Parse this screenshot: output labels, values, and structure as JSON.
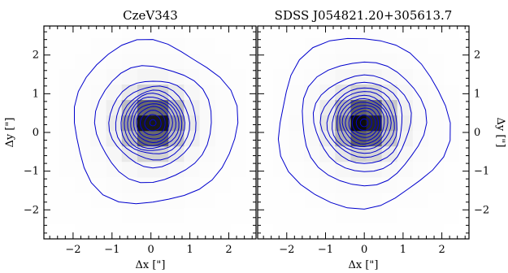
{
  "chart_data": [
    {
      "type": "heatmap",
      "title": "CzeV343",
      "xlabel": "Δx [\"]",
      "ylabel": "Δy [\"]",
      "xlim": [
        -2.75,
        2.7
      ],
      "ylim": [
        -2.75,
        2.75
      ],
      "x_ticks": [
        -2,
        -1,
        0,
        1,
        2
      ],
      "y_ticks": [
        -2,
        -1,
        0,
        1,
        2
      ],
      "x_tick_labels": [
        "−2",
        "−1",
        "0",
        "1",
        "2"
      ],
      "y_tick_labels": [
        "−2",
        "−1",
        "0",
        "1",
        "2"
      ],
      "center": [
        0.05,
        0.25
      ],
      "contour_radii": [
        0.08,
        0.21,
        0.32,
        0.42,
        0.5,
        0.58,
        0.66,
        0.74,
        0.82,
        0.95,
        1.12,
        1.5,
        2.1
      ],
      "contour_color": "#0000cd",
      "colormap": "grayscale-inverted",
      "grid": false
    },
    {
      "type": "heatmap",
      "title": "SDSS J054821.20+305613.7",
      "xlabel": "Δx [\"]",
      "ylabel": "Δy [\"]",
      "xlim": [
        -2.75,
        2.7
      ],
      "ylim": [
        -2.75,
        2.75
      ],
      "x_ticks": [
        -2,
        -1,
        0,
        1,
        2
      ],
      "y_ticks": [
        -2,
        -1,
        0,
        1,
        2
      ],
      "x_tick_labels": [
        "−2",
        "−1",
        "0",
        "1",
        "2"
      ],
      "y_tick_labels": [
        "−2",
        "−1",
        "0",
        "1",
        "2"
      ],
      "center": [
        0.0,
        0.25
      ],
      "contour_radii": [
        0.1,
        0.2,
        0.3,
        0.38,
        0.46,
        0.54,
        0.62,
        0.7,
        0.8,
        0.9,
        1.05,
        1.25,
        1.6,
        2.2
      ],
      "contour_color": "#0000cd",
      "colormap": "grayscale-inverted",
      "grid": false
    }
  ]
}
